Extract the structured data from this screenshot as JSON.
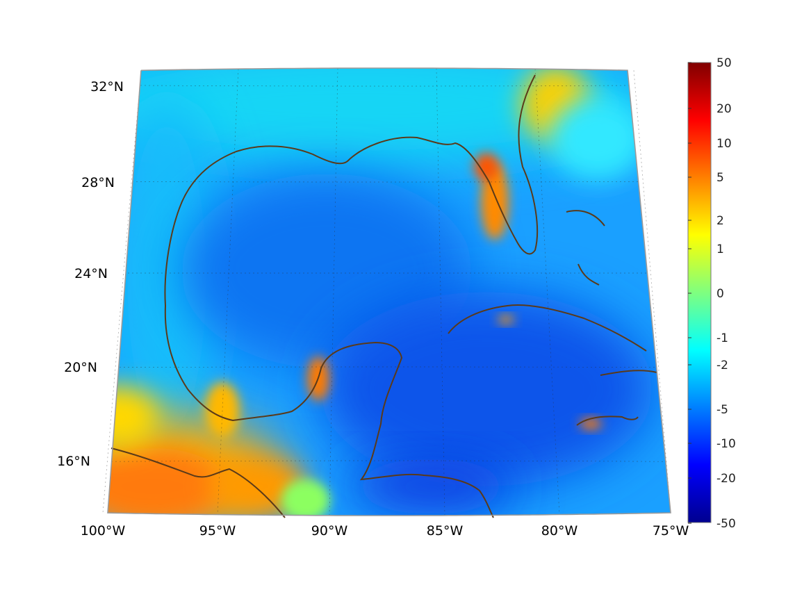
{
  "map": {
    "projection": "lambert-conformal",
    "colormap": "jet",
    "coastline_color": "#5a3a1a",
    "lon_labels": [
      "100°W",
      "95°W",
      "90°W",
      "85°W",
      "80°W",
      "75°W"
    ],
    "lat_labels": [
      "16°N",
      "20°N",
      "24°N",
      "28°N",
      "32°N"
    ],
    "lon_range": [
      -100,
      -75
    ],
    "lat_range": [
      14,
      33
    ],
    "grid": true
  },
  "colorbar": {
    "placement": "right",
    "scale": "nonlinear",
    "tick_labels": [
      "50",
      "20",
      "10",
      "5",
      "2",
      "1",
      "0",
      "-1",
      "-2",
      "-5",
      "-10",
      "-20",
      "-50"
    ],
    "range": [
      -50,
      50
    ]
  }
}
